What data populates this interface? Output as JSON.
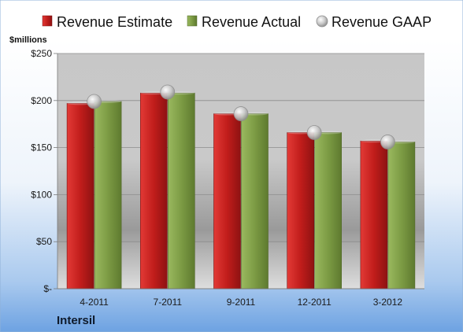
{
  "chart_data": {
    "type": "bar",
    "categories": [
      "4-2011",
      "7-2011",
      "9-2011",
      "12-2011",
      "3-2012"
    ],
    "series": [
      {
        "name": "Revenue Estimate",
        "kind": "bar",
        "color": "#c8201f",
        "values": [
          197,
          208,
          186,
          166,
          157
        ]
      },
      {
        "name": "Revenue Actual",
        "kind": "bar",
        "color": "#7f9f45",
        "values": [
          199,
          208,
          186,
          166,
          156
        ]
      },
      {
        "name": "Revenue GAAP",
        "kind": "marker",
        "color": "#b8b8b8",
        "values": [
          199,
          209,
          186,
          166,
          156
        ]
      }
    ],
    "ylabel": "$millions",
    "ylim": [
      0,
      250
    ],
    "yticks": [
      0,
      50,
      100,
      150,
      200,
      250
    ],
    "ytick_labels": [
      "$-",
      "$50",
      "$100",
      "$150",
      "$200",
      "$250"
    ],
    "grid": true,
    "legend_position": "top"
  },
  "company_label": "Intersil"
}
